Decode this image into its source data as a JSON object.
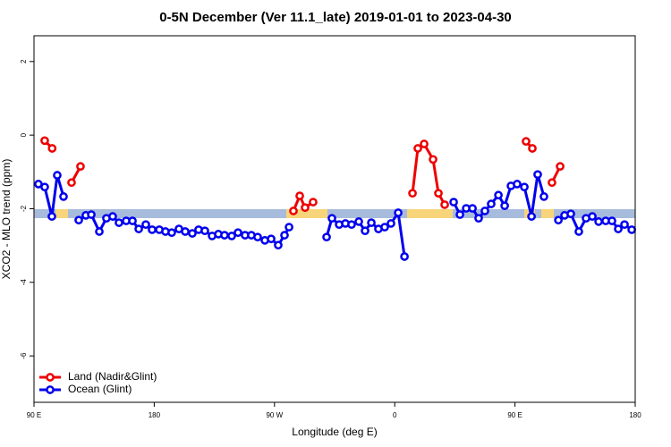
{
  "chart_data": {
    "type": "line",
    "title": "0-5N December (Ver 11.1_late)   2019-01-01 to 2023-04-30",
    "x_label": "Longitude (deg E)",
    "y_label": "XCO2 - MLO trend (ppm)",
    "xlim": [
      90,
      540
    ],
    "ylim": [
      -7.26,
      2.7
    ],
    "xticks": [
      {
        "value": 90,
        "label": "90 E"
      },
      180,
      {
        "value": 270,
        "label": "90 W"
      },
      {
        "value": 360,
        "label": "0"
      },
      {
        "value": 450,
        "label": "90 E"
      },
      {
        "value": 540,
        "label": "180"
      }
    ],
    "yticks": [
      2,
      0,
      -2,
      -4,
      -6
    ],
    "legend": "bottom-left",
    "series": [
      {
        "name": "Land (Nadir&Glint)",
        "color": "#ee0000",
        "x": [
          98.0,
          103.6,
          null,
          118.1,
          124.8,
          null,
          284.2,
          288.9,
          292.9,
          298.9,
          null,
          373.3,
          377.3,
          382.0,
          388.7,
          392.7,
          397.4,
          null,
          458.3,
          463.0,
          null,
          477.7,
          483.8
        ],
        "values": [
          -0.15,
          -0.36,
          null,
          -1.29,
          -0.85,
          null,
          -2.06,
          -1.65,
          -1.97,
          -1.82,
          null,
          -1.58,
          -0.36,
          -0.24,
          -0.66,
          -1.58,
          -1.89,
          null,
          -0.17,
          -0.36,
          null,
          -1.29,
          -0.85
        ]
      },
      {
        "name": "Ocean (Glint)",
        "color": "#0000ee",
        "x": [
          93.3,
          98.0,
          103.4,
          107.4,
          112.1,
          null,
          123.5,
          128.8,
          132.9,
          138.9,
          144.2,
          148.9,
          153.6,
          159.0,
          163.7,
          168.4,
          173.7,
          178.4,
          183.8,
          188.4,
          193.1,
          198.5,
          203.2,
          208.5,
          213.2,
          217.9,
          223.3,
          228.0,
          232.6,
          238.0,
          242.7,
          248.0,
          252.7,
          257.4,
          262.8,
          267.5,
          272.8,
          277.5,
          280.9,
          null,
          309.0,
          313.0,
          318.4,
          323.1,
          327.7,
          333.1,
          337.8,
          342.5,
          347.8,
          352.5,
          357.2,
          362.6,
          367.3,
          null,
          404.1,
          408.8,
          413.5,
          418.2,
          422.8,
          427.5,
          432.2,
          437.6,
          442.3,
          447.0,
          451.6,
          457.0,
          462.4,
          467.0,
          471.7,
          null,
          482.5,
          487.1,
          491.8,
          497.8,
          503.2,
          507.9,
          512.6,
          517.9,
          522.6,
          527.3,
          532.0,
          537.4
        ],
        "values": [
          -1.33,
          -1.41,
          -2.21,
          -1.09,
          -1.67,
          null,
          -2.31,
          -2.18,
          -2.16,
          -2.62,
          -2.26,
          -2.21,
          -2.38,
          -2.33,
          -2.33,
          -2.55,
          -2.43,
          -2.57,
          -2.57,
          -2.62,
          -2.65,
          -2.55,
          -2.62,
          -2.67,
          -2.57,
          -2.6,
          -2.74,
          -2.69,
          -2.72,
          -2.74,
          -2.65,
          -2.72,
          -2.72,
          -2.77,
          -2.86,
          -2.82,
          -2.99,
          -2.72,
          -2.5,
          null,
          -2.77,
          -2.26,
          -2.43,
          -2.4,
          -2.43,
          -2.35,
          -2.6,
          -2.38,
          -2.55,
          -2.5,
          -2.4,
          -2.11,
          -3.3,
          null,
          -1.82,
          -2.16,
          -1.99,
          -1.99,
          -2.26,
          -2.06,
          -1.87,
          -1.63,
          -1.92,
          -1.38,
          -1.33,
          -1.41,
          -2.21,
          -1.07,
          -1.67,
          null,
          -2.31,
          -2.18,
          -2.14,
          -2.62,
          -2.26,
          -2.21,
          -2.35,
          -2.33,
          -2.33,
          -2.55,
          -2.43,
          -2.57
        ]
      }
    ]
  }
}
